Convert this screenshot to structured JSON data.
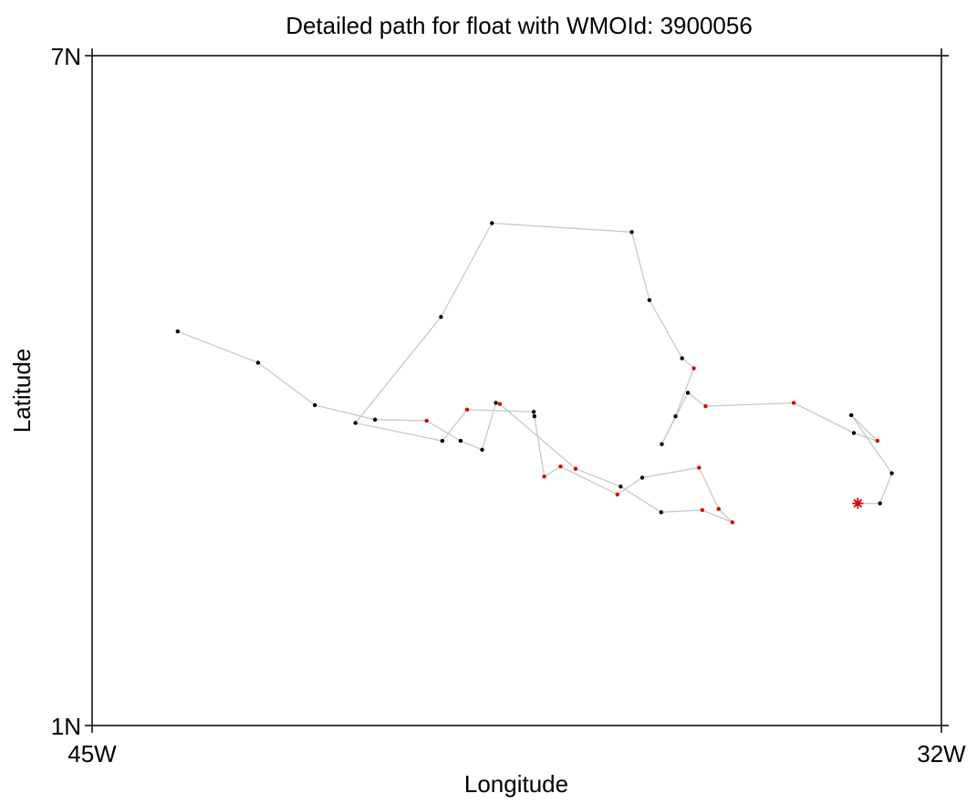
{
  "chart_data": {
    "type": "scatter",
    "title": "Detailed path for float with WMOId: 3900056",
    "xlabel": "Longitude",
    "ylabel": "Latitude",
    "xlim": [
      -45,
      -32
    ],
    "ylim": [
      1,
      7
    ],
    "x_ticks": [
      {
        "value": -45,
        "label": "45W"
      },
      {
        "value": -32,
        "label": "32W"
      }
    ],
    "y_ticks": [
      {
        "value": 1,
        "label": "1N"
      },
      {
        "value": 7,
        "label": "7N"
      }
    ],
    "grid": false,
    "colors": {
      "black_point": "#000000",
      "red_point": "#dd0000",
      "track": "#c8c8c8",
      "current_position": "#dd0000"
    },
    "current_position": {
      "lon": -33.28,
      "lat": 2.99
    },
    "track": [
      {
        "lon": -43.69,
        "lat": 4.53,
        "color": "black"
      },
      {
        "lon": -42.46,
        "lat": 4.25,
        "color": "black"
      },
      {
        "lon": -41.59,
        "lat": 3.87,
        "color": "black"
      },
      {
        "lon": -40.67,
        "lat": 3.74,
        "color": "black"
      },
      {
        "lon": -39.88,
        "lat": 3.73,
        "color": "red"
      },
      {
        "lon": -39.36,
        "lat": 3.55,
        "color": "black"
      },
      {
        "lon": -39.03,
        "lat": 3.47,
        "color": "black"
      },
      {
        "lon": -38.82,
        "lat": 3.89,
        "color": "black"
      },
      {
        "lon": -38.76,
        "lat": 3.88,
        "color": "red"
      },
      {
        "lon": -37.6,
        "lat": 3.3,
        "color": "red"
      },
      {
        "lon": -36.91,
        "lat": 3.14,
        "color": "black"
      },
      {
        "lon": -36.29,
        "lat": 2.91,
        "color": "black"
      },
      {
        "lon": -35.66,
        "lat": 2.93,
        "color": "red"
      },
      {
        "lon": -35.2,
        "lat": 2.82,
        "color": "red"
      },
      {
        "lon": -35.41,
        "lat": 2.94,
        "color": "red"
      },
      {
        "lon": -35.71,
        "lat": 3.31,
        "color": "red"
      },
      {
        "lon": -36.58,
        "lat": 3.22,
        "color": "black"
      },
      {
        "lon": -36.96,
        "lat": 3.07,
        "color": "red"
      },
      {
        "lon": -37.83,
        "lat": 3.32,
        "color": "red"
      },
      {
        "lon": -38.08,
        "lat": 3.23,
        "color": "red"
      },
      {
        "lon": -38.23,
        "lat": 3.77,
        "color": "black"
      },
      {
        "lon": -38.24,
        "lat": 3.81,
        "color": "black"
      },
      {
        "lon": -39.26,
        "lat": 3.83,
        "color": "red"
      },
      {
        "lon": -39.64,
        "lat": 3.55,
        "color": "black"
      },
      {
        "lon": -40.97,
        "lat": 3.71,
        "color": "black"
      },
      {
        "lon": -39.66,
        "lat": 4.66,
        "color": "black"
      },
      {
        "lon": -38.88,
        "lat": 5.5,
        "color": "black"
      },
      {
        "lon": -36.74,
        "lat": 5.42,
        "color": "black"
      },
      {
        "lon": -36.47,
        "lat": 4.81,
        "color": "black"
      },
      {
        "lon": -35.97,
        "lat": 4.29,
        "color": "black"
      },
      {
        "lon": -35.79,
        "lat": 4.2,
        "color": "red"
      },
      {
        "lon": -36.07,
        "lat": 3.77,
        "color": "black"
      },
      {
        "lon": -36.28,
        "lat": 3.52,
        "color": "black"
      },
      {
        "lon": -35.88,
        "lat": 3.98,
        "color": "black"
      },
      {
        "lon": -35.61,
        "lat": 3.86,
        "color": "red"
      },
      {
        "lon": -34.26,
        "lat": 3.89,
        "color": "red"
      },
      {
        "lon": -33.34,
        "lat": 3.62,
        "color": "black"
      },
      {
        "lon": -32.98,
        "lat": 3.55,
        "color": "red"
      },
      {
        "lon": -33.38,
        "lat": 3.78,
        "color": "black"
      },
      {
        "lon": -32.76,
        "lat": 3.26,
        "color": "black"
      },
      {
        "lon": -32.94,
        "lat": 2.99,
        "color": "black"
      },
      {
        "lon": -33.28,
        "lat": 2.99,
        "color": "red"
      }
    ]
  }
}
